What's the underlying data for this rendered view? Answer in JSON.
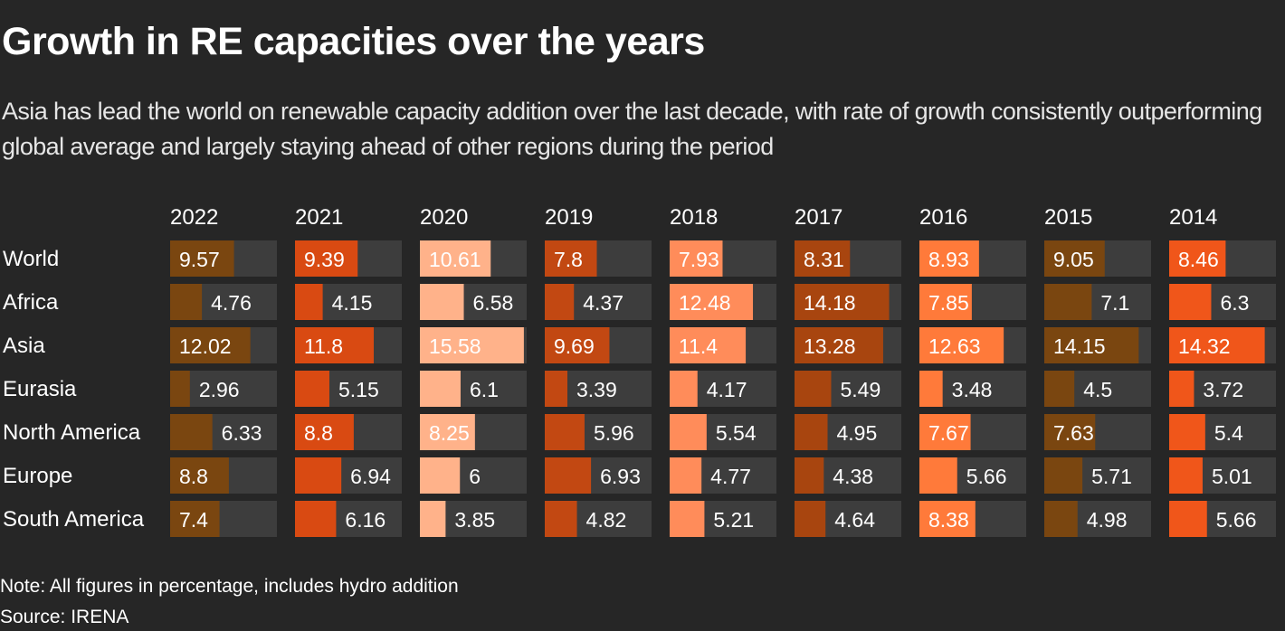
{
  "header": {
    "title": "Growth in RE capacities over the years",
    "subtitle": "Asia has lead the world on renewable capacity addition over the last decade, with rate of growth consistently outperforming global average and largely staying ahead of other regions during the period"
  },
  "footer": {
    "note": "Note: All figures in percentage, includes hydro addition",
    "source": "Source: IRENA"
  },
  "colors": {
    "background": "#262626",
    "track": "#3d3d3d",
    "text": "#ffffff",
    "year_colors": {
      "2022": "#7a4610",
      "2021": "#d94a12",
      "2020": "#ffb28a",
      "2019": "#c24812",
      "2018": "#ff8c5a",
      "2017": "#a8450f",
      "2016": "#ff7a3a",
      "2015": "#7a4610",
      "2014": "#f0561a"
    }
  },
  "chart_data": {
    "type": "bar",
    "layout": "small-multiples",
    "title": "Growth in RE capacities over the years",
    "categories": [
      "World",
      "Africa",
      "Asia",
      "Eurasia",
      "North America",
      "Europe",
      "South America"
    ],
    "x_scale_max": 16,
    "series": [
      {
        "name": "2022",
        "values": [
          9.57,
          4.76,
          12.02,
          2.96,
          6.33,
          8.8,
          7.4
        ]
      },
      {
        "name": "2021",
        "values": [
          9.39,
          4.15,
          11.8,
          5.15,
          8.8,
          6.94,
          6.16
        ]
      },
      {
        "name": "2020",
        "values": [
          10.61,
          6.58,
          15.58,
          6.1,
          8.25,
          6,
          3.85
        ]
      },
      {
        "name": "2019",
        "values": [
          7.8,
          4.37,
          9.69,
          3.39,
          5.96,
          6.93,
          4.82
        ]
      },
      {
        "name": "2018",
        "values": [
          7.93,
          12.48,
          11.4,
          4.17,
          5.54,
          4.77,
          5.21
        ]
      },
      {
        "name": "2017",
        "values": [
          8.31,
          14.18,
          13.28,
          5.49,
          4.95,
          4.38,
          4.64
        ]
      },
      {
        "name": "2016",
        "values": [
          8.93,
          7.85,
          12.63,
          3.48,
          7.67,
          5.66,
          8.38
        ]
      },
      {
        "name": "2015",
        "values": [
          9.05,
          7.1,
          14.15,
          4.5,
          7.63,
          5.71,
          4.98
        ]
      },
      {
        "name": "2014",
        "values": [
          8.46,
          6.3,
          14.32,
          3.72,
          5.4,
          5.01,
          5.66
        ]
      }
    ],
    "labels": {
      "2022": [
        "9.57",
        "4.76",
        "12.02",
        "2.96",
        "6.33",
        "8.8",
        "7.4"
      ],
      "2021": [
        "9.39",
        "4.15",
        "11.8",
        "5.15",
        "8.8",
        "6.94",
        "6.16"
      ],
      "2020": [
        "10.61",
        "6.58",
        "15.58",
        "6.1",
        "8.25",
        "6",
        "3.85"
      ],
      "2019": [
        "7.8",
        "4.37",
        "9.69",
        "3.39",
        "5.96",
        "6.93",
        "4.82"
      ],
      "2018": [
        "7.93",
        "12.48",
        "11.4",
        "4.17",
        "5.54",
        "4.77",
        "5.21"
      ],
      "2017": [
        "8.31",
        "14.18",
        "13.28",
        "5.49",
        "4.95",
        "4.38",
        "4.64"
      ],
      "2016": [
        "8.93",
        "7.85",
        "12.63",
        "3.48",
        "7.67",
        "5.66",
        "8.38"
      ],
      "2015": [
        "9.05",
        "7.1",
        "14.15",
        "4.5",
        "7.63",
        "5.71",
        "4.98"
      ],
      "2014": [
        "8.46",
        "6.3",
        "14.32",
        "3.72",
        "5.4",
        "5.01",
        "5.66"
      ]
    }
  }
}
